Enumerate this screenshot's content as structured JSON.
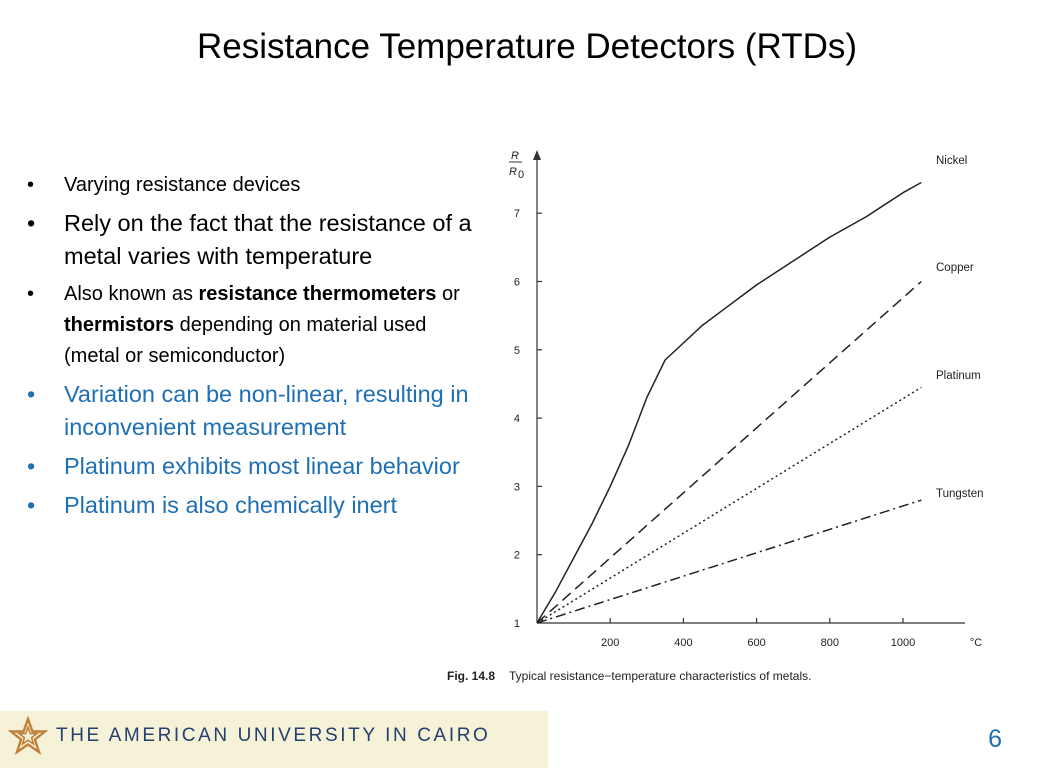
{
  "title": "Resistance Temperature Detectors (RTDs)",
  "bullets": [
    {
      "size": "small",
      "color": "black",
      "parts": [
        {
          "text": "Varying resistance devices",
          "bold": false
        }
      ]
    },
    {
      "size": "large",
      "color": "black",
      "parts": [
        {
          "text": "Rely on the fact that the resistance of a metal varies with temperature",
          "bold": false
        }
      ]
    },
    {
      "size": "small",
      "color": "black",
      "parts": [
        {
          "text": "Also known as ",
          "bold": false
        },
        {
          "text": "resistance thermometers",
          "bold": true
        },
        {
          "text": " or ",
          "bold": false
        },
        {
          "text": "thermistors",
          "bold": true
        },
        {
          "text": " depending on material used (metal or semiconductor)",
          "bold": false
        }
      ]
    },
    {
      "size": "large",
      "color": "blue",
      "parts": [
        {
          "text": "Variation can be non-linear, resulting in inconvenient measurement",
          "bold": false
        }
      ]
    },
    {
      "size": "large",
      "color": "blue",
      "parts": [
        {
          "text": "Platinum exhibits most linear behavior",
          "bold": false
        }
      ]
    },
    {
      "size": "large",
      "color": "blue",
      "parts": [
        {
          "text": "Platinum is also chemically inert",
          "bold": false
        }
      ]
    }
  ],
  "chart_data": {
    "type": "line",
    "ylabel_num": "R",
    "ylabel_den": "R",
    "ylabel_den_sub": "0",
    "xunit": "°C",
    "xlim": [
      0,
      1100
    ],
    "ylim": [
      1,
      7.8
    ],
    "xticks": [
      200,
      400,
      600,
      800,
      1000
    ],
    "yticks": [
      1,
      2,
      3,
      4,
      5,
      6,
      7
    ],
    "grid": false,
    "legend": "inline-right",
    "series": [
      {
        "name": "Nickel",
        "style": "solid",
        "x": [
          0,
          50,
          100,
          150,
          200,
          250,
          300,
          350,
          400,
          450,
          500,
          600,
          700,
          800,
          900,
          1000,
          1050
        ],
        "y": [
          1,
          1.45,
          1.95,
          2.45,
          3.0,
          3.6,
          4.3,
          4.85,
          5.1,
          5.35,
          5.55,
          5.95,
          6.3,
          6.65,
          6.95,
          7.3,
          7.45
        ]
      },
      {
        "name": "Copper",
        "style": "dashed",
        "x": [
          0,
          1050
        ],
        "y": [
          1,
          6.0
        ]
      },
      {
        "name": "Platinum",
        "style": "dotted",
        "x": [
          0,
          1050
        ],
        "y": [
          1,
          4.45
        ]
      },
      {
        "name": "Tungsten",
        "style": "dashdot",
        "x": [
          0,
          1050
        ],
        "y": [
          1,
          2.8
        ]
      }
    ],
    "caption_bold": "Fig. 14.8",
    "caption": "Typical resistance−temperature characteristics of metals."
  },
  "footer": {
    "university": "THE AMERICAN UNIVERSITY IN CAIRO",
    "band_color": "#f6f2d8",
    "logo_color": "#c0803a",
    "text_color": "#23406e",
    "logo_icon": "auc-star-logo"
  },
  "slide_number": "6",
  "colors": {
    "blue_text": "#1f6fb5"
  }
}
